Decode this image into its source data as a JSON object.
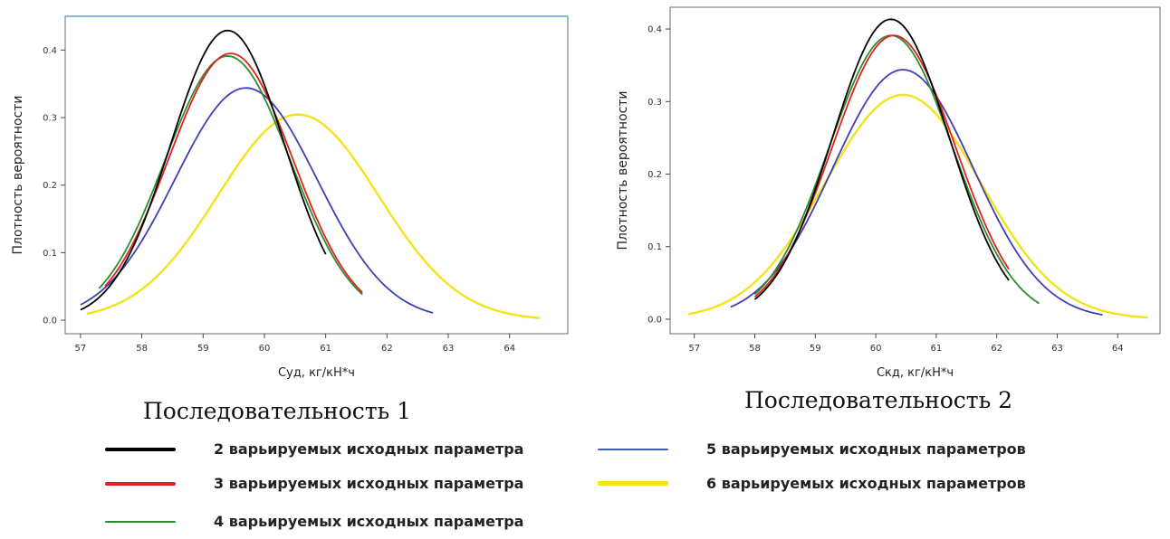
{
  "chart_data": [
    {
      "type": "line",
      "xlabel": "Cуд, кг/кН*ч",
      "ylabel": "Плотность вероятности",
      "xlim": [
        56.75,
        64.95
      ],
      "ylim": [
        -0.02,
        0.45
      ],
      "xticks": [
        57,
        58,
        59,
        60,
        61,
        62,
        63,
        64
      ],
      "yticks": [
        0.0,
        0.1,
        0.2,
        0.3,
        0.4
      ],
      "series": [
        {
          "name": "2 варьируемых исходных параметра",
          "color": "#000000",
          "mu": 59.4,
          "sigma": 0.93,
          "x_range": [
            57.0,
            61.0
          ]
        },
        {
          "name": "3 варьируемых исходных параметра",
          "color": "#e0221f",
          "mu": 59.45,
          "sigma": 1.01,
          "x_range": [
            57.4,
            61.6
          ]
        },
        {
          "name": "4 варьируемых исходных параметра",
          "color": "#2e8b2e",
          "mu": 59.4,
          "sigma": 1.02,
          "x_range": [
            57.3,
            61.6
          ]
        },
        {
          "name": "5 варьируемых исходных параметров",
          "color": "#3f3fb4",
          "mu": 59.7,
          "sigma": 1.16,
          "x_range": [
            57.0,
            62.75
          ]
        },
        {
          "name": "6 варьируемых исходных параметров",
          "color": "#f2e31a",
          "mu": 60.55,
          "sigma": 1.31,
          "x_range": [
            57.1,
            64.5
          ]
        }
      ]
    },
    {
      "type": "line",
      "xlabel": "Cкд, кг/кН*ч",
      "ylabel": "Плотность вероятности",
      "xlim": [
        56.6,
        64.7
      ],
      "ylim": [
        -0.02,
        0.43
      ],
      "xticks": [
        57,
        58,
        59,
        60,
        61,
        62,
        63,
        64
      ],
      "yticks": [
        0.0,
        0.1,
        0.2,
        0.3,
        0.4
      ],
      "series": [
        {
          "name": "2 варьируемых исходных параметра",
          "color": "#000000",
          "mu": 60.25,
          "sigma": 0.965,
          "x_range": [
            58.0,
            62.2
          ]
        },
        {
          "name": "3 варьируемых исходных параметра",
          "color": "#e0221f",
          "mu": 60.3,
          "sigma": 1.02,
          "x_range": [
            58.0,
            62.2
          ]
        },
        {
          "name": "4 варьируемых исходных параметра",
          "color": "#2e8b2e",
          "mu": 60.25,
          "sigma": 1.02,
          "x_range": [
            58.0,
            62.7
          ]
        },
        {
          "name": "5 варьируемых исходных параметров",
          "color": "#3f3fb4",
          "mu": 60.45,
          "sigma": 1.16,
          "x_range": [
            57.6,
            63.75
          ]
        },
        {
          "name": "6 варьируемых исходных параметров",
          "color": "#f2e31a",
          "mu": 60.45,
          "sigma": 1.29,
          "x_range": [
            56.9,
            64.5
          ]
        }
      ]
    }
  ],
  "captions": [
    "Последовательность  1",
    "Последовательность  2"
  ],
  "legend": [
    {
      "label": "2 варьируемых исходных параметра",
      "color": "#000000"
    },
    {
      "label": "3 варьируемых исходных параметра",
      "color": "#e0221f"
    },
    {
      "label": "4 варьируемых исходных параметра",
      "color": "#2e8b2e"
    },
    {
      "label": "5 варьируемых исходных параметров",
      "color": "#3f3fb4"
    },
    {
      "label": "6 варьируемых исходных параметров",
      "color": "#f2e31a"
    }
  ]
}
